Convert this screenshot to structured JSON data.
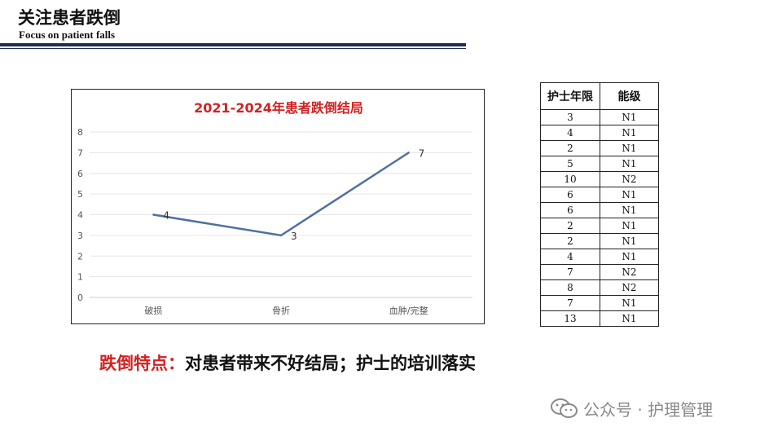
{
  "header": {
    "title": "关注患者跌倒",
    "subtitle": "Focus on patient falls"
  },
  "chart_data": {
    "type": "line",
    "title": "2021-2024年患者跌倒结局",
    "categories": [
      "破损",
      "骨折",
      "血肿/完整"
    ],
    "values": [
      4,
      3,
      7
    ],
    "ylim": [
      0,
      8
    ],
    "yticks": [
      "0",
      "1",
      "2",
      "3",
      "4",
      "5",
      "6",
      "7",
      "8"
    ],
    "data_labels": [
      "4",
      "3",
      "7"
    ],
    "grid": true,
    "line_color": "#4f6fa0"
  },
  "table": {
    "headers": [
      "护士年限",
      "能级"
    ],
    "rows": [
      [
        "3",
        "N1"
      ],
      [
        "4",
        "N1"
      ],
      [
        "2",
        "N1"
      ],
      [
        "5",
        "N1"
      ],
      [
        "10",
        "N2"
      ],
      [
        "6",
        "N1"
      ],
      [
        "6",
        "N1"
      ],
      [
        "2",
        "N1"
      ],
      [
        "2",
        "N1"
      ],
      [
        "4",
        "N1"
      ],
      [
        "7",
        "N2"
      ],
      [
        "8",
        "N2"
      ],
      [
        "7",
        "N1"
      ],
      [
        "13",
        "N1"
      ]
    ]
  },
  "conclusion": {
    "label": "跌倒特点：",
    "text": "对患者带来不好结局；护士的培训落实"
  },
  "watermark": {
    "icon": "wechat-icon",
    "text": "公众号 · 护理管理"
  }
}
